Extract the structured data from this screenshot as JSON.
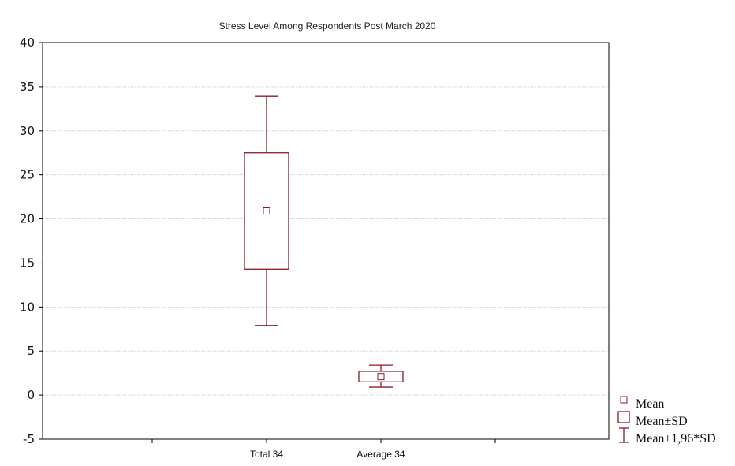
{
  "chart_data": {
    "type": "box",
    "title": "Stress Level Among Respondents Post March 2020",
    "xlabel": "",
    "ylabel": "",
    "ylim": [
      -5,
      40
    ],
    "yticks": [
      "40",
      "35",
      "30",
      "25",
      "20",
      "15",
      "10",
      "5",
      "0",
      "-5"
    ],
    "grid": true,
    "categories": [
      "Total 34",
      "Average 34"
    ],
    "series": [
      {
        "category": "Total 34",
        "mean": 20.9,
        "mean_minus_sd": 14.3,
        "mean_plus_sd": 27.5,
        "mean_minus_196sd": 7.9,
        "mean_plus_196sd": 33.9
      },
      {
        "category": "Average 34",
        "mean": 2.1,
        "mean_minus_sd": 1.5,
        "mean_plus_sd": 2.7,
        "mean_minus_196sd": 0.9,
        "mean_plus_196sd": 3.4
      }
    ],
    "legend": {
      "position": "bottom-right",
      "entries": [
        "Mean",
        "Mean±SD",
        "Mean±1,96*SD"
      ]
    },
    "colors": {
      "box": "#8b1a2b",
      "mean_marker": "#8b1a2b",
      "grid": "#d9d9d9",
      "axis": "#000000"
    }
  }
}
